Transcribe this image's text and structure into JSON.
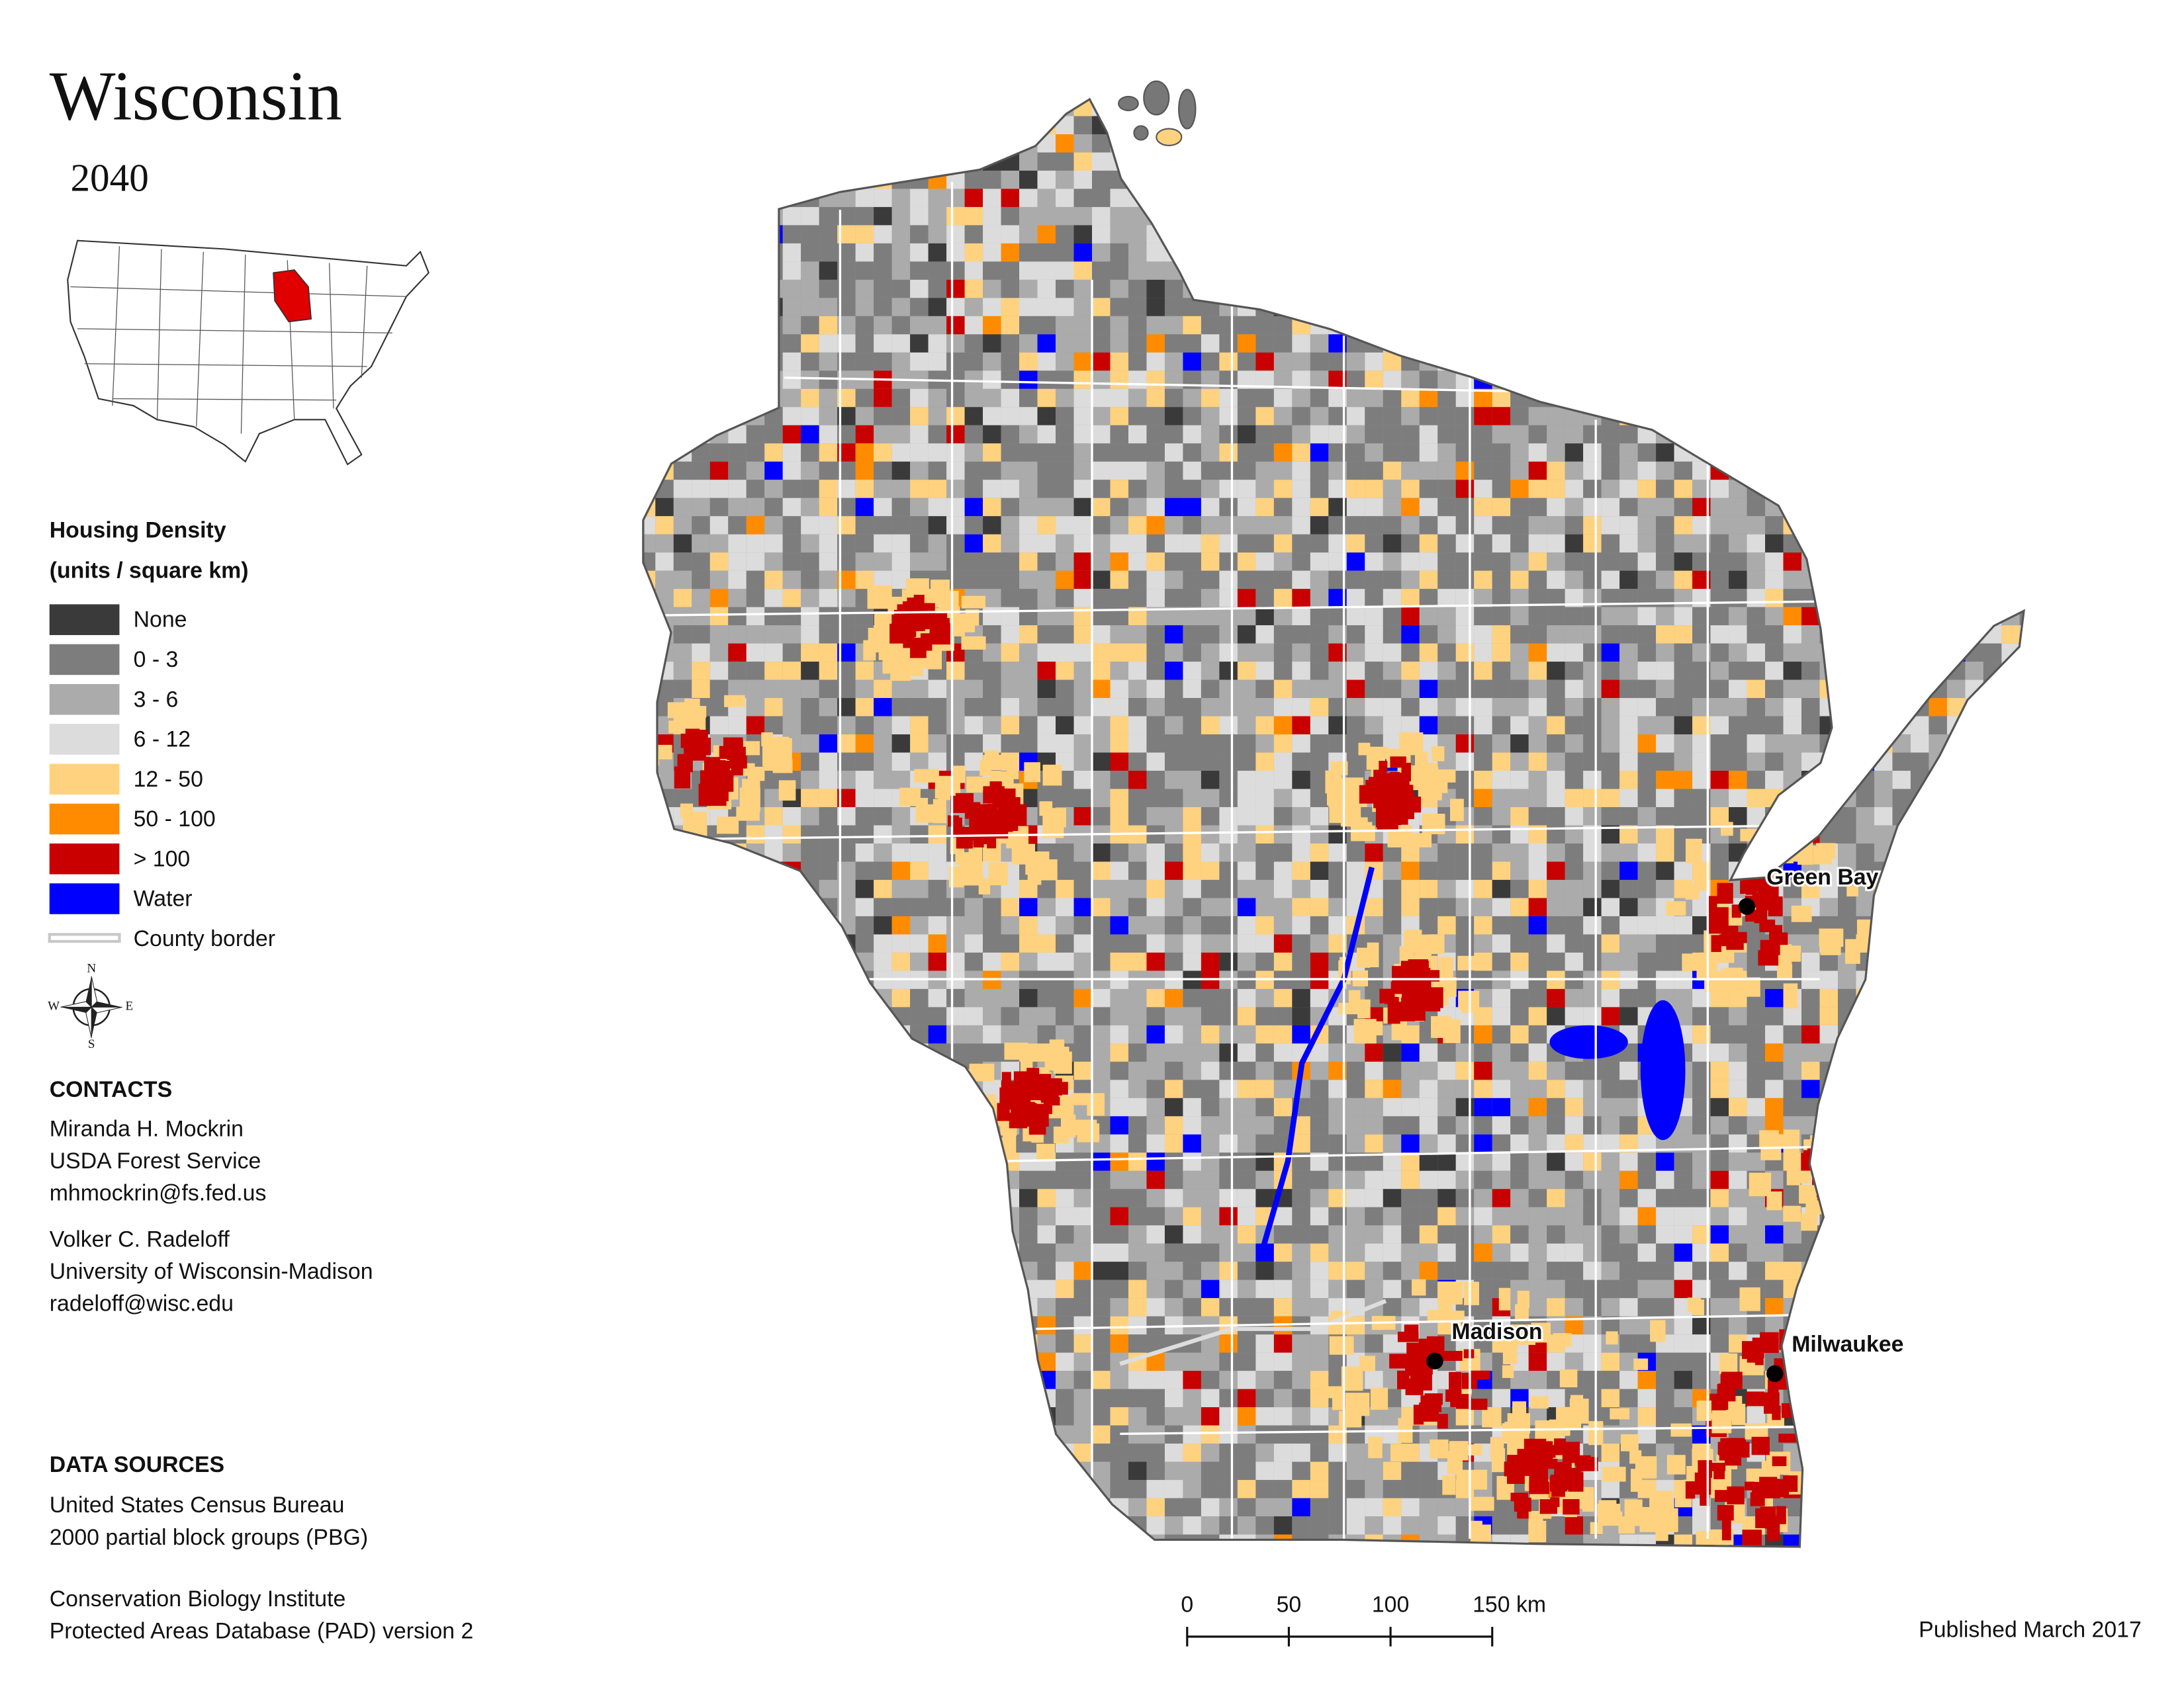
{
  "title": "Wisconsin",
  "subtitle": "2040",
  "legend": {
    "title": "Housing Density",
    "subtitle": "(units / square km)",
    "items": [
      {
        "label": "None",
        "color": "#3a3a3a",
        "symbol": "patch"
      },
      {
        "label": "0 - 3",
        "color": "#7d7d7d",
        "symbol": "patch"
      },
      {
        "label": "3 - 6",
        "color": "#ababab",
        "symbol": "patch"
      },
      {
        "label": "6 - 12",
        "color": "#dcdcdc",
        "symbol": "patch"
      },
      {
        "label": "12 - 50",
        "color": "#ffd27f",
        "symbol": "patch"
      },
      {
        "label": "50 - 100",
        "color": "#ff8c00",
        "symbol": "patch"
      },
      {
        "label": "> 100",
        "color": "#c80000",
        "symbol": "patch"
      },
      {
        "label": "Water",
        "color": "#0000ff",
        "symbol": "patch"
      },
      {
        "label": "County border",
        "color": "#c8c8c8",
        "symbol": "line"
      }
    ]
  },
  "cities": [
    {
      "name": "Green Bay"
    },
    {
      "name": "Madison"
    },
    {
      "name": "Milwaukee"
    }
  ],
  "compass": {
    "north": "N",
    "south": "S",
    "west": "W",
    "east": "E"
  },
  "contacts": {
    "heading": "CONTACTS",
    "people": [
      [
        "Miranda H. Mockrin",
        "USDA Forest Service",
        "mhmockrin@fs.fed.us"
      ],
      [
        "Volker C. Radeloff",
        "University of Wisconsin-Madison",
        "radeloff@wisc.edu"
      ]
    ]
  },
  "data_sources": {
    "heading": "DATA SOURCES",
    "groups": [
      [
        "United States Census Bureau",
        "2000 partial block groups (PBG)"
      ],
      [
        "Conservation Biology Institute",
        "Protected Areas Database (PAD) version 2"
      ]
    ]
  },
  "scale_bar": {
    "ticks": [
      0,
      50,
      100,
      {
        "value": 150,
        "label": "150 km"
      }
    ]
  },
  "published": "Published March 2017"
}
